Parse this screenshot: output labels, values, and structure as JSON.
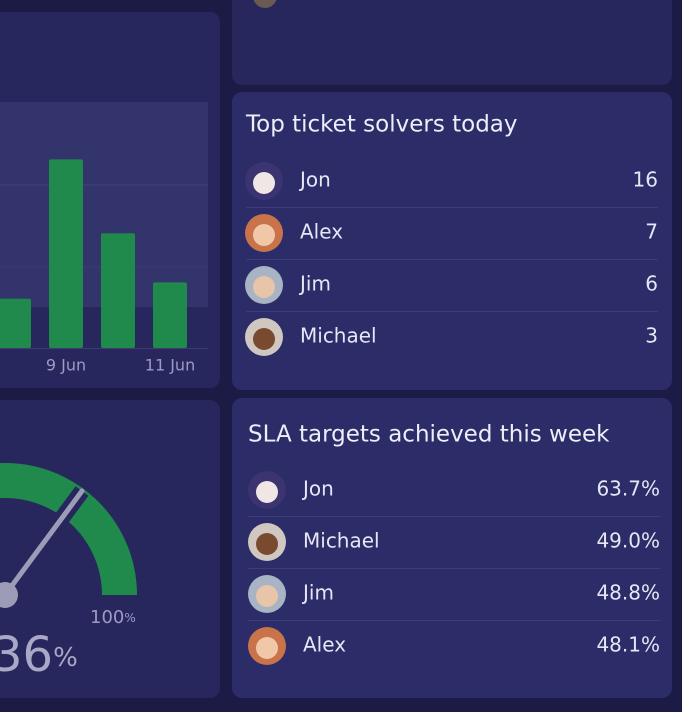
{
  "bar_chart": {
    "type": "bar",
    "categories": [
      null,
      "9 Jun",
      null,
      "11 Jun"
    ],
    "values": [
      0.6,
      2.3,
      1.4,
      0.8
    ],
    "ylim": [
      0,
      3
    ],
    "color": "#1f8a4c"
  },
  "gauge": {
    "value": "36",
    "unit": "%",
    "max_label": "100",
    "max_unit": "%"
  },
  "top_solvers": {
    "title": "Top ticket solvers today",
    "rows": [
      {
        "name": "Jon",
        "value": 16
      },
      {
        "name": "Alex",
        "value": 7
      },
      {
        "name": "Jim",
        "value": 6
      },
      {
        "name": "Michael",
        "value": 3
      }
    ]
  },
  "sla": {
    "title": "SLA targets achieved this week",
    "rows": [
      {
        "name": "Jon",
        "value": "63.7%"
      },
      {
        "name": "Michael",
        "value": "49.0%"
      },
      {
        "name": "Jim",
        "value": "48.8%"
      },
      {
        "name": "Alex",
        "value": "48.1%"
      }
    ]
  }
}
